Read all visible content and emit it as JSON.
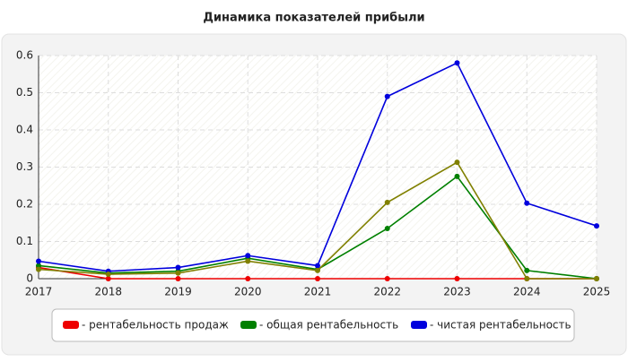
{
  "chart_data": {
    "type": "line",
    "title": "Динамика показателей прибыли",
    "x": [
      2017,
      2018,
      2019,
      2020,
      2021,
      2022,
      2023,
      2024,
      2025
    ],
    "xlim": [
      2017,
      2025
    ],
    "xticks": [
      2017,
      2018,
      2019,
      2020,
      2021,
      2022,
      2023,
      2024,
      2025
    ],
    "ylim": [
      0,
      0.6
    ],
    "yticks": [
      0,
      0.1,
      0.2,
      0.3,
      0.4,
      0.5,
      0.6
    ],
    "grid": true,
    "series": [
      {
        "name": "- рентабельность продаж",
        "color": "#ee0000",
        "values": [
          0.03,
          0,
          0,
          0,
          0,
          0,
          0,
          0,
          0
        ]
      },
      {
        "name": "- общая рентабельность",
        "color": "#008000",
        "values": [
          0.035,
          0.015,
          0.02,
          0.055,
          0.025,
          0.135,
          0.275,
          0.022,
          0
        ]
      },
      {
        "name": "- чистая рентабельность",
        "color": "#0000dd",
        "values": [
          0.047,
          0.02,
          0.03,
          0.062,
          0.035,
          0.49,
          0.58,
          0.203,
          0.142
        ]
      },
      {
        "color": "#808000",
        "values": [
          0.025,
          0.012,
          0.015,
          0.047,
          0.022,
          0.205,
          0.313,
          0,
          0
        ]
      }
    ]
  }
}
